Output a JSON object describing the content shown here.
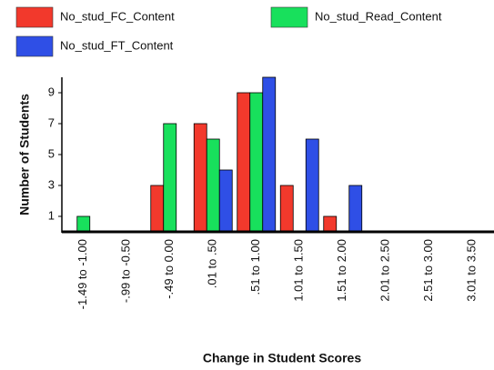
{
  "chart_data": {
    "type": "bar",
    "xlabel": "Change in Student Scores",
    "ylabel": "Number of Students",
    "categories": [
      "-1.49 to -1.00",
      "-.99 to -0.50",
      "-.49 to 0.00",
      ".01 to .50",
      ".51 to 1.00",
      "1.01 to 1.50",
      "1.51 to 2.00",
      "2.01 to 2.50",
      "2.51 to 3.00",
      "3.01 to 3.50"
    ],
    "series": [
      {
        "name": "No_stud_FC_Content",
        "color": "#f2392c",
        "values": [
          0,
          0,
          3,
          7,
          9,
          3,
          1,
          0,
          0,
          0
        ]
      },
      {
        "name": "No_stud_Read_Content",
        "color": "#18e05c",
        "values": [
          1,
          0,
          7,
          6,
          9,
          0,
          0,
          0,
          0,
          0
        ]
      },
      {
        "name": "No_stud_FT_Content",
        "color": "#2f4fe6",
        "values": [
          0,
          0,
          0,
          4,
          10,
          6,
          3,
          0,
          0,
          0
        ]
      }
    ],
    "ylim": [
      0,
      10
    ],
    "yticks": [
      1,
      3,
      5,
      7,
      9
    ],
    "grid": false
  }
}
